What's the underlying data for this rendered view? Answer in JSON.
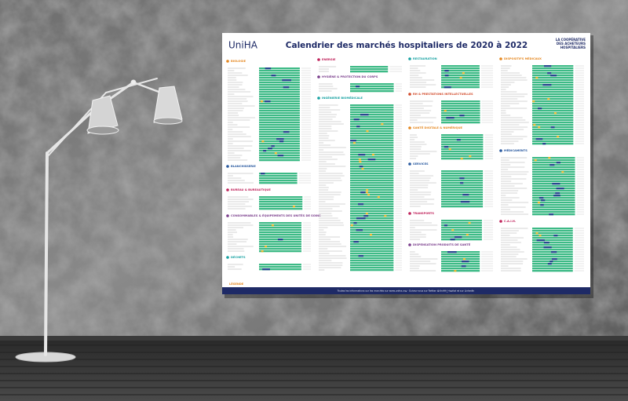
{
  "poster": {
    "brand": "UniHA",
    "title": "Calendrier des marchés hospitaliers de 2020 à 2022",
    "tagline": [
      "LA COOPÉRATIVE",
      "DES ACHETEURS",
      "HOSPITALIERS"
    ],
    "columns": [
      {
        "sections": [
          {
            "label": "BIOLOGIE"
          },
          {
            "label": "BLANCHISSERIE"
          },
          {
            "label": "BUREAU & BUREAUTIQUE"
          },
          {
            "label": "CONSOMMABLES & ÉQUIPEMENTS DES UNITÉS DE SOINS"
          },
          {
            "label": "DÉCHETS"
          }
        ]
      },
      {
        "sections": [
          {
            "label": "ENERGIE"
          },
          {
            "label": "HYGIÈNE & PROTECTION DU CORPS"
          },
          {
            "label": "INGÉNIERIE BIOMÉDICALE"
          }
        ]
      },
      {
        "sections": [
          {
            "label": "RESTAURATION"
          },
          {
            "label": "RH & PRESTATIONS INTELLECTUELLES"
          },
          {
            "label": "SANTÉ DIGITALE & NUMÉRIQUE"
          },
          {
            "label": "SERVICES"
          },
          {
            "label": "TRANSPORTS"
          },
          {
            "label": "DISPENSATION PRODUITS DE SANTÉ"
          }
        ]
      },
      {
        "sections": [
          {
            "label": "DISPOSITIFS MÉDICAUX"
          },
          {
            "label": "MÉDICAMENTS"
          },
          {
            "label": "C.A.I.H."
          }
        ]
      }
    ],
    "legend": "LÉGENDE",
    "footer": "Toutes les informations sur les marchés sur www.uniha.org - Suivez-nous sur Twitter @UniHA_Hopital et sur LinkedIn"
  }
}
